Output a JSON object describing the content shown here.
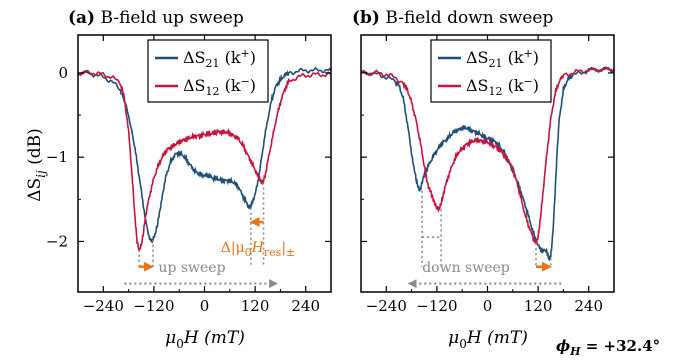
{
  "colors": {
    "series_s21": "#1f4e79",
    "series_s12": "#c8143c",
    "orange_arrow": "#e8731a",
    "gray_arrow": "#8a8a8a",
    "frame": "#000000"
  },
  "ylabel_main": "ΔS",
  "ylabel_sub": "ij",
  "ylabel_unit": " (dB)",
  "xlabel_main": "μ",
  "xlabel_sub": "0",
  "xlabel_rest": "H (mT)",
  "phi_label": "ϕ",
  "phi_sub": "H",
  "phi_value": " = +32.4°",
  "legend": {
    "s21_prefix": "ΔS",
    "s21_sub": "21",
    "s21_k": " (k",
    "s21_sup": "+",
    "s21_close": ")",
    "s12_prefix": "ΔS",
    "s12_sub": "12",
    "s12_k": " (k",
    "s12_sup": "−",
    "s12_close": ")"
  },
  "annotation": {
    "delta_label": "Δ|μ",
    "delta_sub": "0",
    "delta_mid": "H",
    "delta_sub2": "res",
    "delta_end": "|",
    "delta_pm": "±"
  },
  "chart_data": [
    {
      "type": "line",
      "panel_label": "(a)",
      "title": "B-field up sweep",
      "sweep_label": "up sweep",
      "xlabel": "μ0H (mT)",
      "ylabel": "ΔSij (dB)",
      "xlim": [
        -300,
        300
      ],
      "ylim": [
        -2.6,
        0.45
      ],
      "xticks": [
        -240,
        -120,
        0,
        120,
        240
      ],
      "yticks": [
        0,
        -1,
        -2
      ],
      "grid": false,
      "legend_position": "top-right",
      "series": [
        {
          "name": "ΔS21 (k+)",
          "x": [
            -300,
            -280,
            -260,
            -240,
            -220,
            -200,
            -185,
            -170,
            -160,
            -150,
            -140,
            -130,
            -122,
            -115,
            -108,
            -100,
            -90,
            -80,
            -70,
            -60,
            -50,
            -40,
            -30,
            -20,
            -10,
            0,
            10,
            20,
            30,
            40,
            50,
            60,
            70,
            80,
            90,
            100,
            105,
            110,
            115,
            120,
            130,
            140,
            150,
            160,
            170,
            180,
            190,
            200,
            220,
            240,
            260,
            280,
            300
          ],
          "y": [
            0,
            0,
            -0.02,
            -0.05,
            -0.1,
            -0.2,
            -0.4,
            -0.75,
            -1.05,
            -1.4,
            -1.75,
            -1.97,
            -1.98,
            -1.88,
            -1.7,
            -1.45,
            -1.2,
            -1.05,
            -0.97,
            -0.95,
            -0.98,
            -1.05,
            -1.12,
            -1.18,
            -1.2,
            -1.22,
            -1.22,
            -1.25,
            -1.25,
            -1.28,
            -1.28,
            -1.28,
            -1.3,
            -1.35,
            -1.45,
            -1.55,
            -1.6,
            -1.58,
            -1.52,
            -1.45,
            -1.2,
            -0.85,
            -0.55,
            -0.3,
            -0.15,
            -0.08,
            -0.03,
            0,
            0.02,
            0.03,
            0.03,
            0.03,
            0.03
          ]
        },
        {
          "name": "ΔS12 (k−)",
          "x": [
            -300,
            -280,
            -260,
            -240,
            -220,
            -200,
            -190,
            -180,
            -172,
            -165,
            -160,
            -155,
            -150,
            -145,
            -140,
            -130,
            -120,
            -110,
            -100,
            -90,
            -80,
            -70,
            -60,
            -50,
            -40,
            -30,
            -20,
            -10,
            0,
            10,
            20,
            30,
            40,
            50,
            60,
            70,
            80,
            90,
            100,
            110,
            120,
            130,
            135,
            140,
            145,
            150,
            160,
            170,
            180,
            190,
            200,
            220,
            240,
            260,
            280,
            300
          ],
          "y": [
            0,
            0,
            0,
            -0.02,
            -0.05,
            -0.12,
            -0.3,
            -0.7,
            -1.2,
            -1.7,
            -2.0,
            -2.1,
            -2.05,
            -1.9,
            -1.7,
            -1.45,
            -1.25,
            -1.1,
            -1.0,
            -0.92,
            -0.88,
            -0.85,
            -0.82,
            -0.8,
            -0.78,
            -0.76,
            -0.75,
            -0.75,
            -0.73,
            -0.72,
            -0.72,
            -0.7,
            -0.7,
            -0.7,
            -0.72,
            -0.75,
            -0.78,
            -0.85,
            -0.95,
            -1.05,
            -1.15,
            -1.25,
            -1.3,
            -1.28,
            -1.2,
            -1.05,
            -0.8,
            -0.55,
            -0.35,
            -0.2,
            -0.1,
            -0.05,
            -0.03,
            -0.02,
            -0.02,
            -0.02
          ]
        }
      ]
    },
    {
      "type": "line",
      "panel_label": "(b)",
      "title": "B-field down sweep",
      "sweep_label": "down sweep",
      "xlabel": "μ0H (mT)",
      "ylabel": "ΔSij (dB)",
      "xlim": [
        -300,
        300
      ],
      "ylim": [
        -2.6,
        0.45
      ],
      "xticks": [
        -240,
        -120,
        0,
        120,
        240
      ],
      "yticks": [
        0,
        -1,
        -2
      ],
      "grid": false,
      "legend_position": "top-right",
      "series": [
        {
          "name": "ΔS21 (k+)",
          "x": [
            -300,
            -280,
            -260,
            -240,
            -220,
            -210,
            -200,
            -190,
            -180,
            -172,
            -165,
            -160,
            -155,
            -150,
            -140,
            -130,
            -120,
            -110,
            -100,
            -90,
            -80,
            -70,
            -60,
            -50,
            -40,
            -30,
            -20,
            -10,
            0,
            10,
            20,
            30,
            40,
            50,
            60,
            70,
            80,
            90,
            100,
            110,
            120,
            130,
            140,
            145,
            150,
            155,
            160,
            165,
            170,
            180,
            190,
            200,
            220,
            240,
            260,
            280,
            300
          ],
          "y": [
            0,
            0,
            -0.02,
            -0.05,
            -0.1,
            -0.15,
            -0.3,
            -0.6,
            -0.95,
            -1.2,
            -1.35,
            -1.4,
            -1.3,
            -1.2,
            -1.1,
            -1.0,
            -0.92,
            -0.85,
            -0.8,
            -0.75,
            -0.7,
            -0.68,
            -0.65,
            -0.65,
            -0.68,
            -0.7,
            -0.72,
            -0.75,
            -0.78,
            -0.8,
            -0.82,
            -0.88,
            -0.95,
            -1.05,
            -1.15,
            -1.28,
            -1.42,
            -1.58,
            -1.75,
            -1.92,
            -2.05,
            -2.12,
            -2.1,
            -2.2,
            -2.18,
            -1.9,
            -1.45,
            -0.95,
            -0.55,
            -0.2,
            -0.08,
            -0.03,
            0,
            0.03,
            0.04,
            0.04,
            0.04
          ]
        },
        {
          "name": "ΔS12 (k−)",
          "x": [
            -300,
            -280,
            -260,
            -240,
            -220,
            -200,
            -190,
            -180,
            -170,
            -160,
            -150,
            -145,
            -140,
            -135,
            -130,
            -125,
            -120,
            -115,
            -110,
            -105,
            -100,
            -90,
            -80,
            -70,
            -60,
            -50,
            -40,
            -30,
            -20,
            -10,
            0,
            10,
            20,
            30,
            40,
            50,
            60,
            70,
            80,
            90,
            100,
            110,
            115,
            120,
            125,
            130,
            140,
            150,
            160,
            170,
            180,
            200,
            220,
            240,
            260,
            280,
            300
          ],
          "y": [
            0,
            0,
            0,
            -0.02,
            -0.05,
            -0.12,
            -0.2,
            -0.35,
            -0.55,
            -0.8,
            -1.1,
            -1.25,
            -1.35,
            -1.4,
            -1.48,
            -1.55,
            -1.6,
            -1.62,
            -1.55,
            -1.45,
            -1.35,
            -1.18,
            -1.05,
            -0.95,
            -0.9,
            -0.85,
            -0.82,
            -0.8,
            -0.8,
            -0.82,
            -0.82,
            -0.85,
            -0.88,
            -0.92,
            -0.98,
            -1.05,
            -1.15,
            -1.3,
            -1.5,
            -1.7,
            -1.85,
            -1.98,
            -2.02,
            -1.95,
            -1.75,
            -1.5,
            -1.0,
            -0.55,
            -0.25,
            -0.1,
            -0.03,
            0,
            0.02,
            0.03,
            0.04,
            0.04,
            0.04
          ]
        }
      ]
    }
  ]
}
